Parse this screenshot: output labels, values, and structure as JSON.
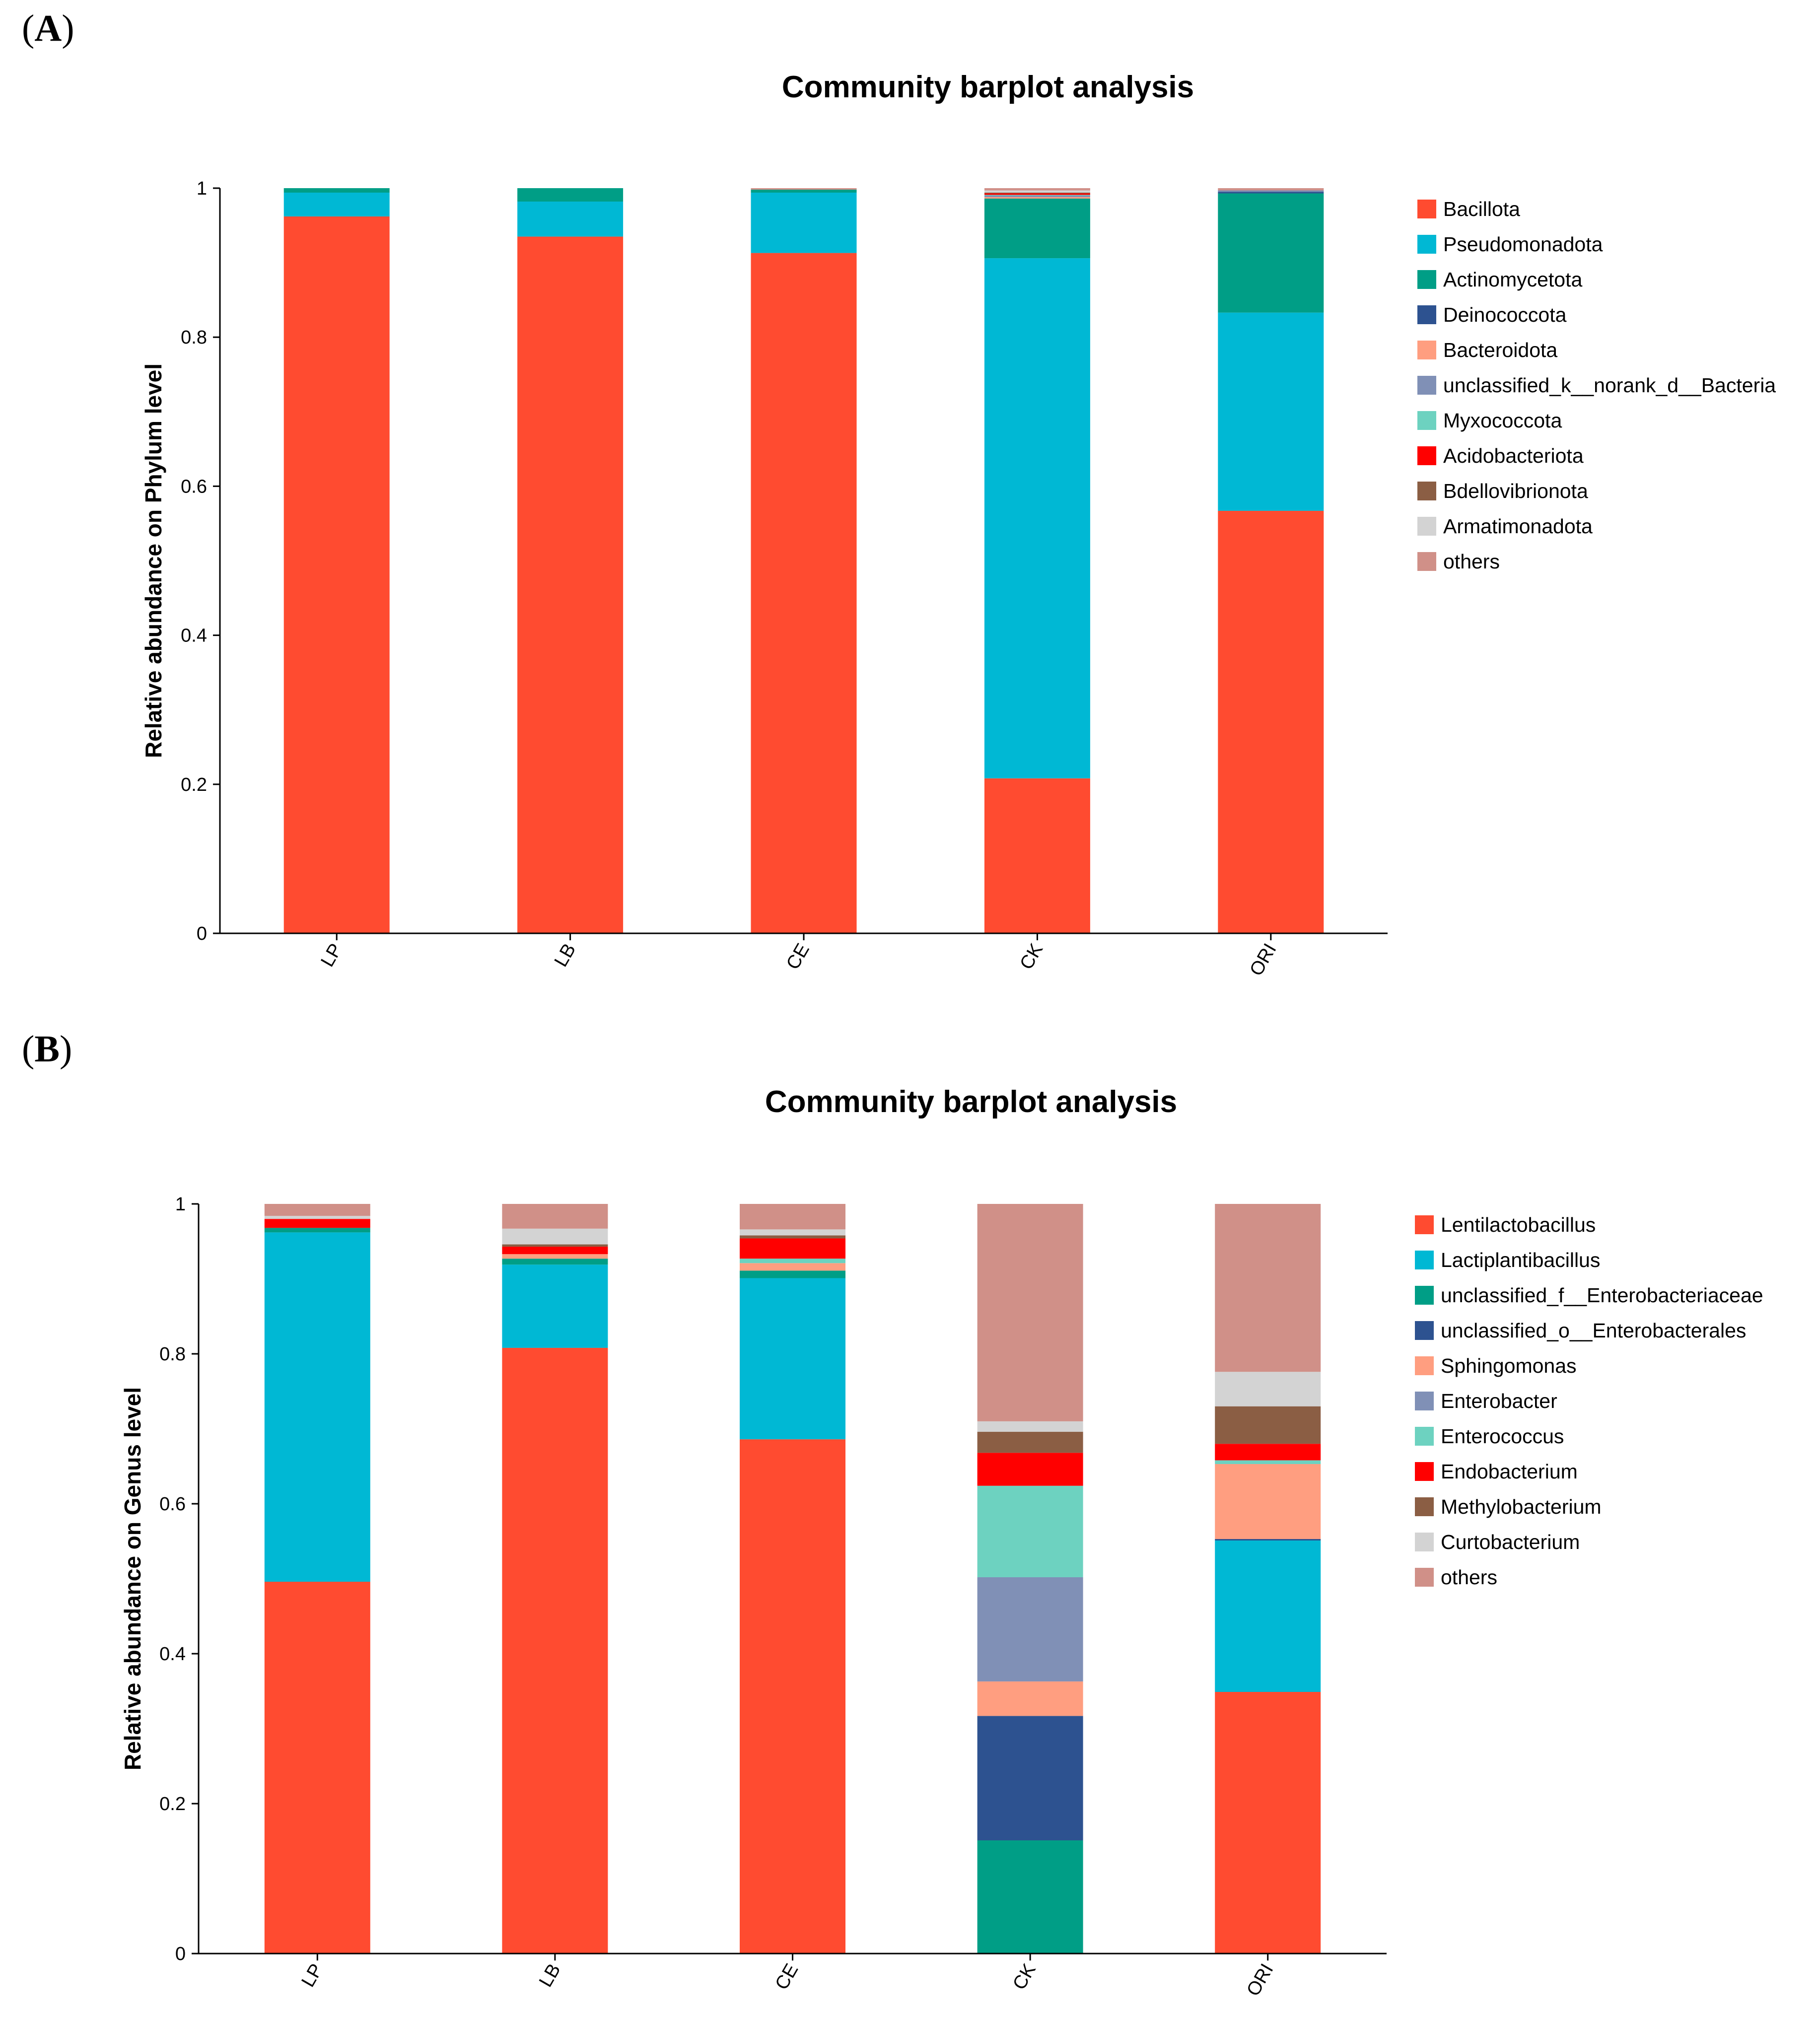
{
  "panels": [
    {
      "label_open": "(",
      "label_letter": "A",
      "label_close": ")"
    },
    {
      "label_open": "(",
      "label_letter": "B",
      "label_close": ")"
    }
  ],
  "chart_data": [
    {
      "type": "bar",
      "stacked": true,
      "title": "Community barplot analysis",
      "ylabel": "Relative abundance on Phylum level",
      "xlabel": "",
      "ylim": [
        0,
        1
      ],
      "yticks": [
        "0",
        "0.2",
        "0.4",
        "0.6",
        "0.8",
        "1"
      ],
      "legend_position": "right",
      "categories": [
        "LP",
        "LB",
        "CE",
        "CK",
        "ORI"
      ],
      "series": [
        {
          "name": "Bacillota",
          "color": "#FF4B30",
          "values": [
            0.962,
            0.935,
            0.913,
            0.208,
            0.567
          ]
        },
        {
          "name": "Pseudomonadota",
          "color": "#00B8D4",
          "values": [
            0.032,
            0.047,
            0.081,
            0.698,
            0.266
          ]
        },
        {
          "name": "Actinomycetota",
          "color": "#009E86",
          "values": [
            0.006,
            0.018,
            0.004,
            0.08,
            0.16
          ]
        },
        {
          "name": "Deinococcota",
          "color": "#2D5290",
          "values": [
            0.0,
            0.0,
            0.0,
            0.0,
            0.002
          ]
        },
        {
          "name": "Bacteroidota",
          "color": "#FF9E80",
          "values": [
            0.0,
            0.0,
            0.0,
            0.002,
            0.0
          ]
        },
        {
          "name": "unclassified_k__norank_d__Bacteria",
          "color": "#8090B6",
          "values": [
            0.0,
            0.0,
            0.0,
            0.002,
            0.002
          ]
        },
        {
          "name": "Myxococcota",
          "color": "#6DD2C0",
          "values": [
            0.0,
            0.0,
            0.0,
            0.001,
            0.0
          ]
        },
        {
          "name": "Acidobacteriota",
          "color": "#FF0000",
          "values": [
            0.0,
            0.0,
            0.0,
            0.002,
            0.0
          ]
        },
        {
          "name": "Bdellovibrionota",
          "color": "#8B5E44",
          "values": [
            0.0,
            0.0,
            0.0,
            0.001,
            0.0
          ]
        },
        {
          "name": "Armatimonadota",
          "color": "#D3D3D3",
          "values": [
            0.0,
            0.0,
            0.0,
            0.003,
            0.0
          ]
        },
        {
          "name": "others",
          "color": "#D09088",
          "values": [
            0.0,
            0.0,
            0.002,
            0.003,
            0.003
          ]
        }
      ]
    },
    {
      "type": "bar",
      "stacked": true,
      "title": "Community barplot analysis",
      "ylabel": "Relative abundance on Genus level",
      "xlabel": "",
      "ylim": [
        0,
        1
      ],
      "yticks": [
        "0",
        "0.2",
        "0.4",
        "0.6",
        "0.8",
        "1"
      ],
      "legend_position": "right",
      "categories": [
        "LP",
        "LB",
        "CE",
        "CK",
        "ORI"
      ],
      "series": [
        {
          "name": "Lentilactobacillus",
          "color": "#FF4B30",
          "values": [
            0.496,
            0.808,
            0.686,
            0.0,
            0.349
          ]
        },
        {
          "name": "Lactiplantibacillus",
          "color": "#00B8D4",
          "values": [
            0.466,
            0.111,
            0.215,
            0.0,
            0.202
          ]
        },
        {
          "name": "unclassified_f__Enterobacteriaceae",
          "color": "#009E86",
          "values": [
            0.006,
            0.008,
            0.01,
            0.151,
            0.0
          ]
        },
        {
          "name": "unclassified_o__Enterobacterales",
          "color": "#2D5290",
          "values": [
            0.0,
            0.0,
            0.0,
            0.166,
            0.002
          ]
        },
        {
          "name": "Sphingomonas",
          "color": "#FF9E80",
          "values": [
            0.0,
            0.006,
            0.01,
            0.046,
            0.1
          ]
        },
        {
          "name": "Enterobacter",
          "color": "#8090B6",
          "values": [
            0.0,
            0.0,
            0.0,
            0.139,
            0.0
          ]
        },
        {
          "name": "Enterococcus",
          "color": "#6DD2C0",
          "values": [
            0.0,
            0.0,
            0.006,
            0.122,
            0.005
          ]
        },
        {
          "name": "Endobacterium",
          "color": "#FF0000",
          "values": [
            0.012,
            0.01,
            0.027,
            0.044,
            0.022
          ]
        },
        {
          "name": "Methylobacterium",
          "color": "#8B5E44",
          "values": [
            0.0,
            0.003,
            0.004,
            0.028,
            0.05
          ]
        },
        {
          "name": "Curtobacterium",
          "color": "#D3D3D3",
          "values": [
            0.004,
            0.021,
            0.008,
            0.014,
            0.046
          ]
        },
        {
          "name": "others",
          "color": "#D09088",
          "values": [
            0.016,
            0.033,
            0.034,
            0.29,
            0.224
          ]
        }
      ]
    }
  ]
}
